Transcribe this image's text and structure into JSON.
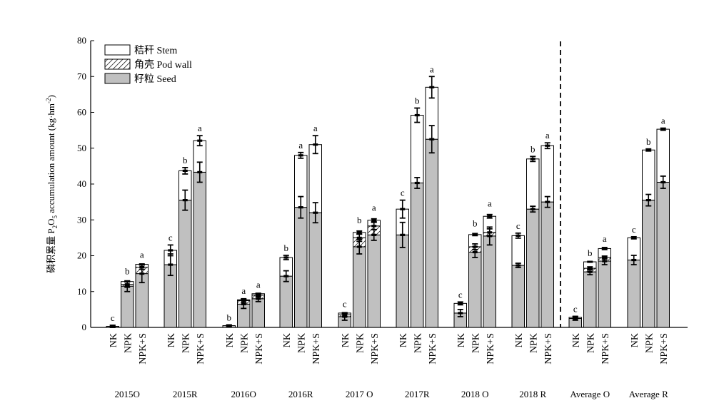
{
  "chart_data": {
    "type": "bar",
    "stacked": true,
    "ylabel": "磷积累量 P2O5 accumulation amount (kg·hm-2)",
    "ylabel_parts": {
      "cn": "磷积累量 P",
      "sub": "2",
      "mid": "O",
      "sub2": "5",
      "en": " accumulation amount (kg·hm",
      "sup": "-2",
      "end": ")"
    },
    "ylim": [
      0,
      80
    ],
    "yticks": [
      "0",
      "10",
      "20",
      "30",
      "40",
      "50",
      "60",
      "70",
      "80"
    ],
    "legend_position": "top-left",
    "legend": [
      {
        "key": "stem",
        "label": "秸秆 Stem",
        "fill": "#ffffff"
      },
      {
        "key": "pod",
        "label": "角壳 Pod wall",
        "fill": "hatch"
      },
      {
        "key": "seed",
        "label": "籽粒 Seed",
        "fill": "#c0c0c0"
      }
    ],
    "treatments": [
      "NK",
      "NPK",
      "NPK+S"
    ],
    "groups": [
      {
        "label": "2015O",
        "bars": [
          {
            "seed": 0.3,
            "pod": 0.0,
            "stem": 0.0,
            "total": 0.3,
            "letter": "c",
            "seed_err": 0.3,
            "pod_err": 0,
            "total_err": 0.3
          },
          {
            "seed": 11.5,
            "pod": 0.5,
            "stem": 0.8,
            "total": 12.8,
            "letter": "b",
            "seed_err": 1.5,
            "pod_err": 0.8,
            "total_err": 0
          },
          {
            "seed": 15.0,
            "pod": 1.8,
            "stem": 0.8,
            "total": 17.6,
            "letter": "a",
            "seed_err": 2.5,
            "pod_err": 0.6,
            "total_err": 0
          }
        ]
      },
      {
        "label": "2015R",
        "bars": [
          {
            "seed": 17.5,
            "pod": 0.0,
            "stem": 4.0,
            "total": 21.5,
            "letter": "c",
            "seed_err": 3.0,
            "pod_err": 0,
            "total_err": 1.5
          },
          {
            "seed": 35.5,
            "pod": 0.0,
            "stem": 8.2,
            "total": 43.7,
            "letter": "b",
            "seed_err": 2.8,
            "pod_err": 0,
            "total_err": 0.9
          },
          {
            "seed": 43.3,
            "pod": 0.0,
            "stem": 8.8,
            "total": 52.1,
            "letter": "a",
            "seed_err": 2.8,
            "pod_err": 0,
            "total_err": 1.4
          }
        ]
      },
      {
        "label": "2016O",
        "bars": [
          {
            "seed": 0.5,
            "pod": 0.0,
            "stem": 0.0,
            "total": 0.5,
            "letter": "b",
            "seed_err": 0.2,
            "pod_err": 0,
            "total_err": 0.2
          },
          {
            "seed": 6.5,
            "pod": 1.0,
            "stem": 0.2,
            "total": 7.7,
            "letter": "a",
            "seed_err": 1.2,
            "pod_err": 0.5,
            "total_err": 0
          },
          {
            "seed": 8.0,
            "pod": 1.0,
            "stem": 0.4,
            "total": 9.4,
            "letter": "a",
            "seed_err": 0.8,
            "pod_err": 0.5,
            "total_err": 0
          }
        ]
      },
      {
        "label": "2016R",
        "bars": [
          {
            "seed": 14.3,
            "pod": 0.0,
            "stem": 5.2,
            "total": 19.5,
            "letter": "b",
            "seed_err": 1.5,
            "pod_err": 0,
            "total_err": 0.6
          },
          {
            "seed": 33.5,
            "pod": 0.0,
            "stem": 14.5,
            "total": 48.0,
            "letter": "a",
            "seed_err": 3.0,
            "pod_err": 0,
            "total_err": 0.8
          },
          {
            "seed": 32.0,
            "pod": 0.0,
            "stem": 19.0,
            "total": 51.0,
            "letter": "a",
            "seed_err": 2.8,
            "pod_err": 0,
            "total_err": 2.5
          }
        ]
      },
      {
        "label": "2017 O",
        "bars": [
          {
            "seed": 3.0,
            "pod": 0.5,
            "stem": 0.5,
            "total": 4.0,
            "letter": "c",
            "seed_err": 1.0,
            "pod_err": 0.5,
            "total_err": 0
          },
          {
            "seed": 22.5,
            "pod": 2.5,
            "stem": 1.5,
            "total": 26.5,
            "letter": "b",
            "seed_err": 2.0,
            "pod_err": 1.0,
            "total_err": 0.4
          },
          {
            "seed": 25.8,
            "pod": 2.5,
            "stem": 1.6,
            "total": 29.9,
            "letter": "a",
            "seed_err": 1.5,
            "pod_err": 1.0,
            "total_err": 0.4
          }
        ]
      },
      {
        "label": "2017R",
        "bars": [
          {
            "seed": 25.8,
            "pod": 0.0,
            "stem": 7.2,
            "total": 33.0,
            "letter": "c",
            "seed_err": 3.5,
            "pod_err": 0,
            "total_err": 2.5
          },
          {
            "seed": 40.3,
            "pod": 0.0,
            "stem": 18.9,
            "total": 59.2,
            "letter": "b",
            "seed_err": 1.5,
            "pod_err": 0,
            "total_err": 2.0
          },
          {
            "seed": 52.5,
            "pod": 0.0,
            "stem": 14.5,
            "total": 67.0,
            "letter": "a",
            "seed_err": 3.8,
            "pod_err": 0,
            "total_err": 3.0
          }
        ]
      },
      {
        "label": "2018 O",
        "bars": [
          {
            "seed": 4.0,
            "pod": 0.0,
            "stem": 2.7,
            "total": 6.7,
            "letter": "c",
            "seed_err": 1.0,
            "pod_err": 0,
            "total_err": 0.4
          },
          {
            "seed": 21.0,
            "pod": 1.5,
            "stem": 3.4,
            "total": 25.9,
            "letter": "b",
            "seed_err": 1.5,
            "pod_err": 0.8,
            "total_err": 0.3
          },
          {
            "seed": 25.5,
            "pod": 1.0,
            "stem": 4.5,
            "total": 31.0,
            "letter": "a",
            "seed_err": 2.5,
            "pod_err": 1.0,
            "total_err": 0.5
          }
        ]
      },
      {
        "label": "2018 R",
        "bars": [
          {
            "seed": 17.3,
            "pod": 0.0,
            "stem": 8.3,
            "total": 25.6,
            "letter": "c",
            "seed_err": 0.6,
            "pod_err": 0,
            "total_err": 0.7
          },
          {
            "seed": 33.0,
            "pod": 0.0,
            "stem": 14.0,
            "total": 47.0,
            "letter": "b",
            "seed_err": 0.8,
            "pod_err": 0,
            "total_err": 0.7
          },
          {
            "seed": 35.0,
            "pod": 0.0,
            "stem": 15.7,
            "total": 50.7,
            "letter": "a",
            "seed_err": 1.5,
            "pod_err": 0,
            "total_err": 0.8
          }
        ]
      },
      {
        "label": "Average O",
        "bars": [
          {
            "seed": 2.5,
            "pod": 0.0,
            "stem": 0.3,
            "total": 2.8,
            "letter": "c",
            "seed_err": 0.5,
            "pod_err": 0,
            "total_err": 0.3
          },
          {
            "seed": 15.5,
            "pod": 1.0,
            "stem": 1.8,
            "total": 18.3,
            "letter": "b",
            "seed_err": 0.8,
            "pod_err": 0.4,
            "total_err": 0
          },
          {
            "seed": 18.5,
            "pod": 1.0,
            "stem": 2.5,
            "total": 22.0,
            "letter": "a",
            "seed_err": 1.0,
            "pod_err": 0.4,
            "total_err": 0.3
          }
        ]
      },
      {
        "label": "Average  R",
        "bars": [
          {
            "seed": 18.8,
            "pod": 0.0,
            "stem": 6.2,
            "total": 25.0,
            "letter": "c",
            "seed_err": 1.3,
            "pod_err": 0,
            "total_err": 0.3
          },
          {
            "seed": 35.5,
            "pod": 0.0,
            "stem": 14.0,
            "total": 49.5,
            "letter": "b",
            "seed_err": 1.6,
            "pod_err": 0,
            "total_err": 0.3
          },
          {
            "seed": 40.5,
            "pod": 0.0,
            "stem": 14.8,
            "total": 55.3,
            "letter": "a",
            "seed_err": 1.7,
            "pod_err": 0,
            "total_err": 0.3
          }
        ]
      }
    ],
    "divider_after_group": "2018 R"
  }
}
